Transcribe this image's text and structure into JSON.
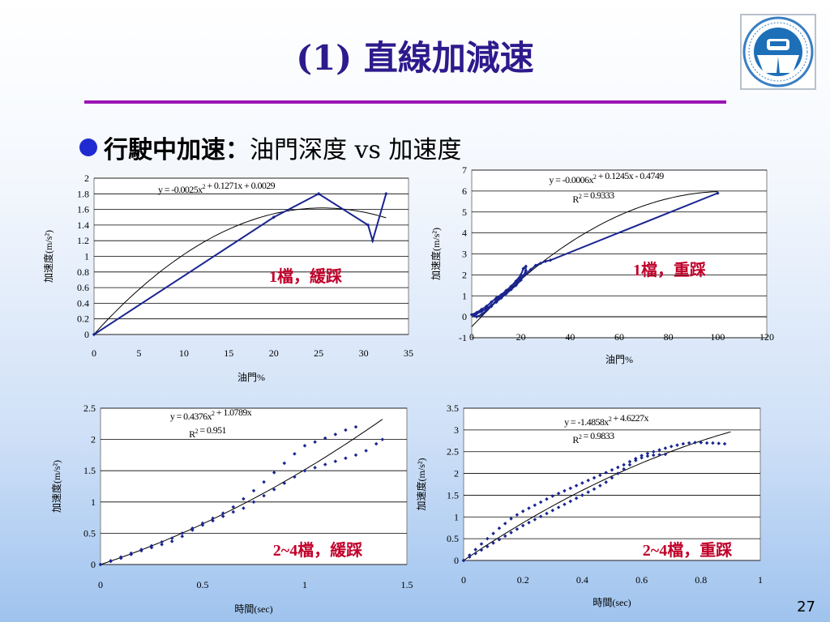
{
  "slide": {
    "title": "(1) 直線加減速",
    "bullet_bold": "行駛中加速：",
    "bullet_rest": "油門深度 vs 加速度",
    "page_number": "27"
  },
  "colors": {
    "title": "#2e1a8c",
    "rule": "#9b13b5",
    "bullet": "#1f2bd0",
    "series": "#1a2590",
    "trend": "#000000",
    "annotation": "#c0002a"
  },
  "chart_data": [
    {
      "id": "c1",
      "type": "line",
      "xlabel": "油門%",
      "ylabel": "加速度(m/s²)",
      "xlim": [
        0,
        35
      ],
      "ylim": [
        0,
        2
      ],
      "xticks": [
        0,
        5,
        10,
        15,
        20,
        25,
        30,
        35
      ],
      "yticks": [
        0,
        0.2,
        0.4,
        0.6,
        0.8,
        1,
        1.2,
        1.4,
        1.6,
        1.8,
        2
      ],
      "ytick_labels": [
        "0",
        "0.2",
        "0.4",
        "0.6",
        "0.8",
        "1",
        "1.2",
        "1.4",
        "1.6",
        "1.8",
        "2"
      ],
      "grid": true,
      "series": [
        {
          "x": [
            0,
            20,
            25,
            30.5,
            31,
            32.5
          ],
          "y": [
            0,
            1.5,
            1.8,
            1.4,
            1.2,
            1.8
          ]
        }
      ],
      "trendline": {
        "coef": [
          -0.0025,
          0.1271,
          0.0029
        ],
        "x_range": [
          0,
          32.5
        ]
      },
      "equation": "y = -0.0025x² + 0.1271x + 0.0029",
      "r2": "",
      "annotation": "1檔，緩踩"
    },
    {
      "id": "c2",
      "type": "scatter",
      "xlabel": "油門%",
      "ylabel": "加速度(m/s²)",
      "xlim": [
        0,
        120
      ],
      "ylim": [
        -1,
        7
      ],
      "xticks": [
        0,
        20,
        40,
        60,
        80,
        100,
        120
      ],
      "yticks": [
        -1,
        0,
        1,
        2,
        3,
        4,
        5,
        6,
        7
      ],
      "ytick_labels": [
        "-1",
        "0",
        "1",
        "2",
        "3",
        "4",
        "5",
        "6",
        "7"
      ],
      "grid": true,
      "series": [
        {
          "x": [
            0,
            2,
            4,
            6,
            8,
            10,
            12,
            14,
            16,
            18,
            20,
            21,
            22,
            22,
            21,
            20,
            18,
            16,
            14,
            12,
            10,
            8,
            6,
            4,
            2,
            1,
            2,
            4,
            6,
            8,
            10,
            12,
            14,
            16,
            18,
            20,
            22,
            24,
            26,
            28,
            30,
            32,
            100
          ],
          "y": [
            0.1,
            0.2,
            0.35,
            0.5,
            0.7,
            0.9,
            1.05,
            1.25,
            1.45,
            1.7,
            2.0,
            2.3,
            2.4,
            2.2,
            1.95,
            1.75,
            1.5,
            1.3,
            1.1,
            0.9,
            0.7,
            0.55,
            0.4,
            0.25,
            0.15,
            0.05,
            0.0,
            0.1,
            0.3,
            0.5,
            0.8,
            1.0,
            1.2,
            1.45,
            1.65,
            1.85,
            2.05,
            2.25,
            2.45,
            2.55,
            2.65,
            2.7,
            5.9
          ]
        }
      ],
      "trendline": {
        "coef": [
          -0.0006,
          0.1245,
          -0.4749
        ],
        "x_range": [
          0,
          100
        ]
      },
      "equation": "y = -0.0006x² + 0.1245x - 0.4749",
      "r2": "R² = 0.9333",
      "annotation": "1檔，重踩"
    },
    {
      "id": "c3",
      "type": "scatter",
      "xlabel": "時間(sec)",
      "ylabel": "加速度(m/s²)",
      "xlim": [
        0,
        1.5
      ],
      "ylim": [
        0,
        2.5
      ],
      "xticks": [
        0,
        0.5,
        1,
        1.5
      ],
      "yticks": [
        0,
        0.5,
        1,
        1.5,
        2,
        2.5
      ],
      "ytick_labels": [
        "0",
        "0.5",
        "1",
        "1.5",
        "2",
        "2.5"
      ],
      "grid": true,
      "series": [
        {
          "x": [
            0,
            0.05,
            0.1,
            0.15,
            0.2,
            0.25,
            0.3,
            0.35,
            0.4,
            0.45,
            0.5,
            0.55,
            0.6,
            0.65,
            0.7,
            0.75,
            0.8,
            0.85,
            0.9,
            0.95,
            1.0,
            1.05,
            1.1,
            1.15,
            1.2,
            1.25
          ],
          "y": [
            0,
            0.06,
            0.12,
            0.18,
            0.24,
            0.3,
            0.36,
            0.42,
            0.5,
            0.58,
            0.66,
            0.74,
            0.82,
            0.92,
            1.05,
            1.18,
            1.32,
            1.47,
            1.62,
            1.77,
            1.9,
            1.96,
            2.02,
            2.08,
            2.15,
            2.2
          ]
        },
        {
          "x": [
            0,
            0.05,
            0.1,
            0.15,
            0.2,
            0.25,
            0.3,
            0.35,
            0.4,
            0.45,
            0.5,
            0.55,
            0.6,
            0.65,
            0.7,
            0.75,
            0.8,
            0.85,
            0.9,
            0.95,
            1.0,
            1.05,
            1.1,
            1.15,
            1.2,
            1.25,
            1.3,
            1.35,
            1.38
          ],
          "y": [
            0,
            0.05,
            0.1,
            0.16,
            0.22,
            0.27,
            0.32,
            0.37,
            0.45,
            0.55,
            0.63,
            0.7,
            0.77,
            0.84,
            0.9,
            1.0,
            1.1,
            1.2,
            1.3,
            1.4,
            1.5,
            1.55,
            1.6,
            1.65,
            1.7,
            1.75,
            1.82,
            1.93,
            2.0
          ]
        }
      ],
      "trendline": {
        "coef": [
          0.4376,
          1.0789,
          0
        ],
        "x_range": [
          0,
          1.38
        ]
      },
      "equation": "y = 0.4376x² + 1.0789x",
      "r2": "R² = 0.951",
      "annotation": "2~4檔，緩踩"
    },
    {
      "id": "c4",
      "type": "scatter",
      "xlabel": "時間(sec)",
      "ylabel": "加速度(m/s²)",
      "xlim": [
        0,
        1
      ],
      "ylim": [
        0,
        3.5
      ],
      "xticks": [
        0,
        0.2,
        0.4,
        0.6,
        0.8,
        1
      ],
      "yticks": [
        0,
        0.5,
        1,
        1.5,
        2,
        2.5,
        3,
        3.5
      ],
      "ytick_labels": [
        "0",
        "0.5",
        "1",
        "1.5",
        "2",
        "2.5",
        "3",
        "3.5"
      ],
      "grid": true,
      "series": [
        {
          "x": [
            0,
            0.02,
            0.04,
            0.06,
            0.08,
            0.1,
            0.12,
            0.14,
            0.16,
            0.18,
            0.2,
            0.22,
            0.24,
            0.26,
            0.28,
            0.3,
            0.32,
            0.34,
            0.36,
            0.38,
            0.4,
            0.42,
            0.44,
            0.46,
            0.48,
            0.5,
            0.52,
            0.54,
            0.56,
            0.58,
            0.6,
            0.62,
            0.64,
            0.66,
            0.68,
            0.7,
            0.72,
            0.74,
            0.76,
            0.78,
            0.8,
            0.82,
            0.84,
            0.86,
            0.88
          ],
          "y": [
            0,
            0.12,
            0.25,
            0.38,
            0.5,
            0.62,
            0.74,
            0.85,
            0.96,
            1.05,
            1.13,
            1.2,
            1.27,
            1.34,
            1.41,
            1.48,
            1.54,
            1.6,
            1.66,
            1.72,
            1.78,
            1.84,
            1.9,
            1.96,
            2.02,
            2.08,
            2.14,
            2.2,
            2.27,
            2.34,
            2.41,
            2.46,
            2.5,
            2.54,
            2.58,
            2.62,
            2.65,
            2.68,
            2.7,
            2.71,
            2.71,
            2.7,
            2.7,
            2.69,
            2.68
          ]
        },
        {
          "x": [
            0,
            0.02,
            0.04,
            0.06,
            0.08,
            0.1,
            0.12,
            0.14,
            0.16,
            0.18,
            0.2,
            0.22,
            0.24,
            0.26,
            0.28,
            0.3,
            0.32,
            0.34,
            0.36,
            0.38,
            0.4,
            0.42,
            0.44,
            0.46,
            0.48,
            0.5,
            0.52,
            0.54,
            0.56,
            0.58,
            0.6,
            0.62,
            0.64,
            0.66,
            0.68
          ],
          "y": [
            0,
            0.08,
            0.16,
            0.24,
            0.32,
            0.4,
            0.48,
            0.56,
            0.64,
            0.72,
            0.8,
            0.87,
            0.94,
            1.01,
            1.08,
            1.15,
            1.22,
            1.29,
            1.36,
            1.43,
            1.5,
            1.57,
            1.64,
            1.72,
            1.8,
            1.9,
            2.0,
            2.1,
            2.2,
            2.3,
            2.36,
            2.4,
            2.42,
            2.43,
            2.44
          ]
        }
      ],
      "trendline": {
        "coef": [
          -1.4858,
          4.6227,
          0
        ],
        "x_range": [
          0,
          0.9
        ]
      },
      "equation": "y = -1.4858x² + 4.6227x",
      "r2": "R² = 0.9833",
      "annotation": "2~4檔，重踩"
    }
  ]
}
